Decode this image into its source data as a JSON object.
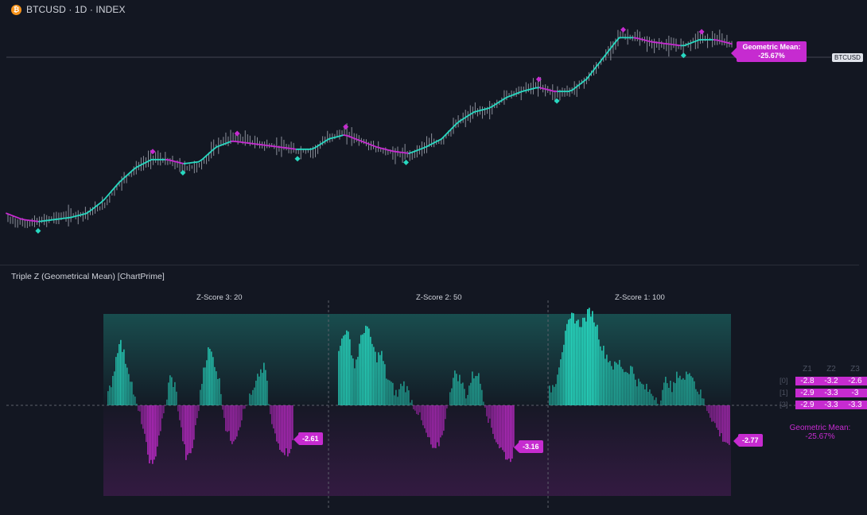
{
  "header": {
    "logo_glyph": "₿",
    "symbol": "BTCUSD · 1D · INDEX"
  },
  "price_scale": {
    "last_price_label": "BTCUSD"
  },
  "geo_label": {
    "line1": "Geometric Mean:",
    "line2": "-25.67%"
  },
  "indicator": {
    "title": "Triple Z (Geometrical Mean) [ChartPrime]"
  },
  "colors": {
    "background": "#131722",
    "bull": "#27d8c0",
    "bear": "#c62bd0",
    "candle": "#8a8e99"
  },
  "chart_data": [
    {
      "type": "line",
      "title": "BTCUSD · 1D · INDEX",
      "series": [
        {
          "name": "Price (close, normalized)",
          "values": [
            0.08,
            0.06,
            0.07,
            0.09,
            0.1,
            0.11,
            0.15,
            0.26,
            0.33,
            0.38,
            0.36,
            0.33,
            0.34,
            0.44,
            0.48,
            0.46,
            0.44,
            0.43,
            0.41,
            0.41,
            0.48,
            0.5,
            0.46,
            0.42,
            0.4,
            0.39,
            0.44,
            0.46,
            0.55,
            0.6,
            0.61,
            0.68,
            0.71,
            0.73,
            0.69,
            0.7,
            0.76,
            0.85,
            0.97,
            0.96,
            0.93,
            0.92,
            0.92,
            0.96,
            0.95,
            0.93
          ]
        },
        {
          "name": "Smoothed trend",
          "values": [
            0.11,
            0.08,
            0.07,
            0.08,
            0.09,
            0.11,
            0.17,
            0.26,
            0.33,
            0.37,
            0.37,
            0.35,
            0.36,
            0.43,
            0.46,
            0.45,
            0.44,
            0.43,
            0.42,
            0.42,
            0.47,
            0.49,
            0.46,
            0.43,
            0.41,
            0.4,
            0.43,
            0.47,
            0.55,
            0.6,
            0.62,
            0.67,
            0.7,
            0.72,
            0.7,
            0.7,
            0.76,
            0.86,
            0.96,
            0.96,
            0.94,
            0.93,
            0.92,
            0.95,
            0.95,
            0.93
          ]
        }
      ]
    },
    {
      "type": "bar",
      "title": "Triple Z (Geometrical Mean) [ChartPrime]",
      "sections": [
        {
          "label": "Z-Score 3: 20",
          "last_value_label": "-2.61",
          "values": [
            0.1,
            0.35,
            0.7,
            0.5,
            0.3,
            0.0,
            -0.2,
            -0.6,
            -0.8,
            -0.4,
            -0.1,
            0.3,
            0.2,
            -0.3,
            -0.7,
            -0.55,
            -0.1,
            0.4,
            0.6,
            0.45,
            0.2,
            -0.3,
            -0.45,
            -0.35,
            -0.1,
            0.05,
            0.15,
            0.35,
            0.4,
            -0.2,
            -0.45,
            -0.55,
            -0.6,
            -0.45
          ]
        },
        {
          "label": "Z-Score 2: 50",
          "last_value_label": "-3.16",
          "values": [
            0.55,
            0.8,
            0.7,
            0.4,
            0.65,
            0.85,
            0.7,
            0.5,
            0.55,
            0.3,
            0.2,
            0.1,
            0.25,
            0.15,
            0.0,
            -0.1,
            -0.3,
            -0.45,
            -0.6,
            -0.45,
            -0.2,
            0.2,
            0.35,
            0.25,
            0.1,
            0.3,
            0.35,
            0.15,
            -0.15,
            -0.35,
            -0.5,
            -0.6,
            -0.7,
            -0.55
          ]
        },
        {
          "label": "Z-Score 1: 100",
          "last_value_label": "-2.77",
          "values": [
            0.15,
            0.25,
            0.55,
            0.8,
            0.95,
            0.85,
            0.9,
            1.0,
            0.85,
            0.6,
            0.5,
            0.4,
            0.45,
            0.35,
            0.4,
            0.25,
            0.2,
            0.15,
            0.1,
            0.05,
            0.3,
            0.15,
            0.35,
            0.25,
            0.4,
            0.2,
            0.1,
            -0.05,
            -0.2,
            -0.35,
            -0.45,
            -0.5
          ]
        }
      ],
      "table": {
        "columns": [
          "Z1",
          "Z2",
          "Z3"
        ],
        "rows": [
          {
            "index": "[0]",
            "values": [
              "-2.8",
              "-3.2",
              "-2.6"
            ]
          },
          {
            "index": "[1]",
            "values": [
              "-2.9",
              "-3.3",
              "-3"
            ]
          },
          {
            "index": "[2]",
            "values": [
              "-2.9",
              "-3.3",
              "-3.3"
            ]
          }
        ],
        "geo_line1": "Geometric Mean:",
        "geo_line2": "-25.67%"
      }
    }
  ]
}
